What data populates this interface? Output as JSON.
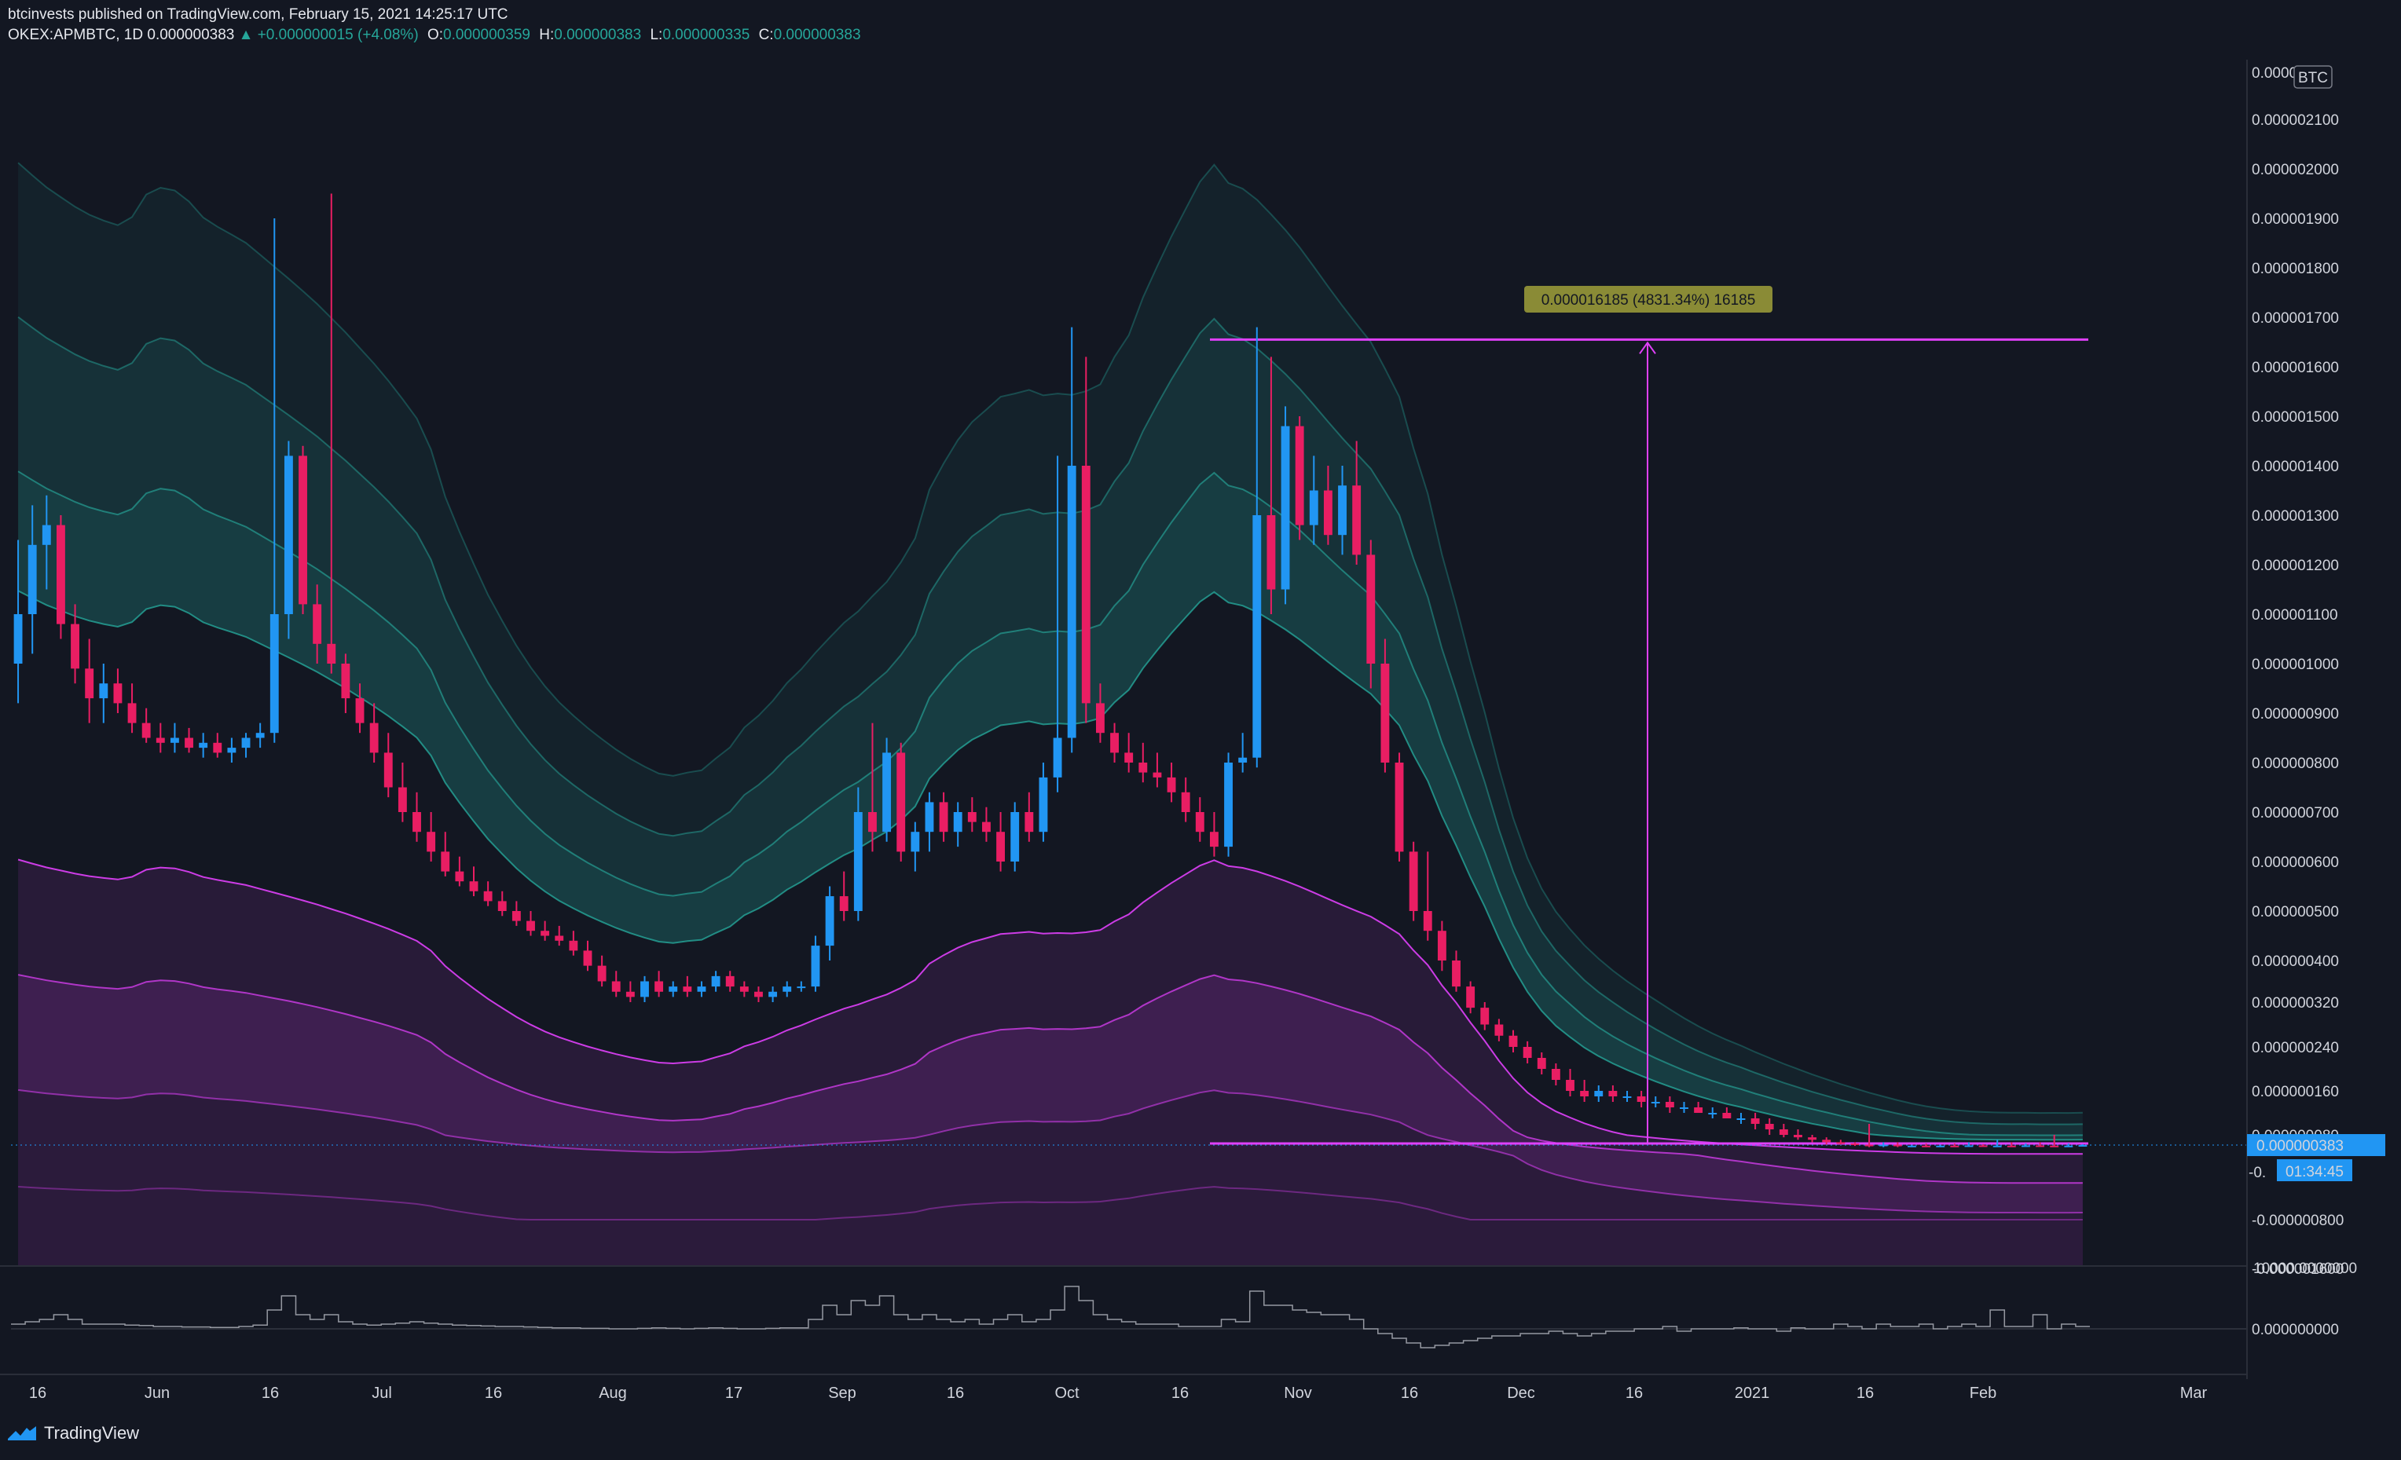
{
  "header": {
    "publisher_line": "btcinvests published on TradingView.com, February 15, 2021 14:25:17 UTC",
    "symbol": "OKEX:APMBTC, 1D",
    "last": "0.000000383",
    "change": "▲ +0.000000015 (+4.08%)",
    "o_label": "O:",
    "o_val": "0.000000359",
    "h_label": "H:",
    "h_val": "0.000000383",
    "l_label": "L:",
    "l_val": "0.000000335",
    "c_label": "C:",
    "c_val": "0.000000383"
  },
  "footer": {
    "brand": "TradingView"
  },
  "colors": {
    "background": "#131722",
    "up": "#2196f3",
    "down": "#e91e63",
    "teal_band": "#26a69a",
    "magenta_band": "#e040fb",
    "measure": "#e040fb",
    "last_price_bg": "#2196f3"
  },
  "chart_data": {
    "type": "candlestick",
    "currency_badge": "BTC",
    "price_scale_labels": [
      "0.000002100",
      "0.000002000",
      "0.000001900",
      "0.000001800",
      "0.000001700",
      "0.000001600",
      "0.000001500",
      "0.000001400",
      "0.000001300",
      "0.000001200",
      "0.000001100",
      "0.000001000",
      "0.000000900",
      "0.000000800",
      "0.000000700",
      "0.000000600",
      "0.000000500",
      "0.000000400",
      "0.000000320",
      "0.000000240",
      "0.000000160",
      "0.000000080",
      "-0.000000800"
    ],
    "price_scale_top_partial": "0.00000",
    "price_scale_bottom_partial": "-0.000001600",
    "last_price": "0.000000383",
    "countdown": "01:34:45",
    "last_price_neg_partial": "-0.",
    "volume_scale_labels": [
      "10000.0000000",
      "0.000000000"
    ],
    "x_labels": [
      "16",
      "Jun",
      "16",
      "Jul",
      "16",
      "Aug",
      "17",
      "Sep",
      "16",
      "Oct",
      "16",
      "Nov",
      "16",
      "Dec",
      "16",
      "2021",
      "16",
      "Feb",
      "Mar"
    ],
    "measure_label": "0.000016185 (4831.34%) 16185",
    "candles": [
      {
        "o": 1.0,
        "h": 1.25,
        "l": 0.92,
        "c": 1.1
      },
      {
        "o": 1.1,
        "h": 1.32,
        "l": 1.02,
        "c": 1.24
      },
      {
        "o": 1.24,
        "h": 1.34,
        "l": 1.15,
        "c": 1.28
      },
      {
        "o": 1.28,
        "h": 1.3,
        "l": 1.05,
        "c": 1.08
      },
      {
        "o": 1.08,
        "h": 1.12,
        "l": 0.96,
        "c": 0.99
      },
      {
        "o": 0.99,
        "h": 1.05,
        "l": 0.88,
        "c": 0.93
      },
      {
        "o": 0.93,
        "h": 1.0,
        "l": 0.88,
        "c": 0.96
      },
      {
        "o": 0.96,
        "h": 0.99,
        "l": 0.9,
        "c": 0.92
      },
      {
        "o": 0.92,
        "h": 0.96,
        "l": 0.86,
        "c": 0.88
      },
      {
        "o": 0.88,
        "h": 0.91,
        "l": 0.84,
        "c": 0.85
      },
      {
        "o": 0.85,
        "h": 0.88,
        "l": 0.82,
        "c": 0.84
      },
      {
        "o": 0.84,
        "h": 0.88,
        "l": 0.82,
        "c": 0.85
      },
      {
        "o": 0.85,
        "h": 0.87,
        "l": 0.82,
        "c": 0.83
      },
      {
        "o": 0.83,
        "h": 0.86,
        "l": 0.81,
        "c": 0.84
      },
      {
        "o": 0.84,
        "h": 0.86,
        "l": 0.81,
        "c": 0.82
      },
      {
        "o": 0.82,
        "h": 0.85,
        "l": 0.8,
        "c": 0.83
      },
      {
        "o": 0.83,
        "h": 0.86,
        "l": 0.81,
        "c": 0.85
      },
      {
        "o": 0.85,
        "h": 0.88,
        "l": 0.83,
        "c": 0.86
      },
      {
        "o": 0.86,
        "h": 1.9,
        "l": 0.84,
        "c": 1.1
      },
      {
        "o": 1.1,
        "h": 1.45,
        "l": 1.05,
        "c": 1.42
      },
      {
        "o": 1.42,
        "h": 1.44,
        "l": 1.1,
        "c": 1.12
      },
      {
        "o": 1.12,
        "h": 1.16,
        "l": 1.0,
        "c": 1.04
      },
      {
        "o": 1.04,
        "h": 1.95,
        "l": 0.98,
        "c": 1.0
      },
      {
        "o": 1.0,
        "h": 1.02,
        "l": 0.9,
        "c": 0.93
      },
      {
        "o": 0.93,
        "h": 0.96,
        "l": 0.86,
        "c": 0.88
      },
      {
        "o": 0.88,
        "h": 0.92,
        "l": 0.8,
        "c": 0.82
      },
      {
        "o": 0.82,
        "h": 0.86,
        "l": 0.73,
        "c": 0.75
      },
      {
        "o": 0.75,
        "h": 0.8,
        "l": 0.68,
        "c": 0.7
      },
      {
        "o": 0.7,
        "h": 0.74,
        "l": 0.64,
        "c": 0.66
      },
      {
        "o": 0.66,
        "h": 0.7,
        "l": 0.6,
        "c": 0.62
      },
      {
        "o": 0.62,
        "h": 0.66,
        "l": 0.57,
        "c": 0.58
      },
      {
        "o": 0.58,
        "h": 0.61,
        "l": 0.55,
        "c": 0.56
      },
      {
        "o": 0.56,
        "h": 0.59,
        "l": 0.53,
        "c": 0.54
      },
      {
        "o": 0.54,
        "h": 0.56,
        "l": 0.51,
        "c": 0.52
      },
      {
        "o": 0.52,
        "h": 0.54,
        "l": 0.49,
        "c": 0.5
      },
      {
        "o": 0.5,
        "h": 0.52,
        "l": 0.47,
        "c": 0.48
      },
      {
        "o": 0.48,
        "h": 0.5,
        "l": 0.45,
        "c": 0.46
      },
      {
        "o": 0.46,
        "h": 0.48,
        "l": 0.44,
        "c": 0.45
      },
      {
        "o": 0.45,
        "h": 0.47,
        "l": 0.43,
        "c": 0.44
      },
      {
        "o": 0.44,
        "h": 0.46,
        "l": 0.41,
        "c": 0.42
      },
      {
        "o": 0.42,
        "h": 0.44,
        "l": 0.38,
        "c": 0.39
      },
      {
        "o": 0.39,
        "h": 0.41,
        "l": 0.35,
        "c": 0.36
      },
      {
        "o": 0.36,
        "h": 0.38,
        "l": 0.33,
        "c": 0.34
      },
      {
        "o": 0.34,
        "h": 0.36,
        "l": 0.32,
        "c": 0.33
      },
      {
        "o": 0.33,
        "h": 0.37,
        "l": 0.32,
        "c": 0.36
      },
      {
        "o": 0.36,
        "h": 0.38,
        "l": 0.33,
        "c": 0.34
      },
      {
        "o": 0.34,
        "h": 0.36,
        "l": 0.33,
        "c": 0.35
      },
      {
        "o": 0.35,
        "h": 0.37,
        "l": 0.33,
        "c": 0.34
      },
      {
        "o": 0.34,
        "h": 0.36,
        "l": 0.33,
        "c": 0.35
      },
      {
        "o": 0.35,
        "h": 0.38,
        "l": 0.34,
        "c": 0.37
      },
      {
        "o": 0.37,
        "h": 0.38,
        "l": 0.34,
        "c": 0.35
      },
      {
        "o": 0.35,
        "h": 0.36,
        "l": 0.33,
        "c": 0.34
      },
      {
        "o": 0.34,
        "h": 0.35,
        "l": 0.32,
        "c": 0.33
      },
      {
        "o": 0.33,
        "h": 0.35,
        "l": 0.32,
        "c": 0.34
      },
      {
        "o": 0.34,
        "h": 0.36,
        "l": 0.33,
        "c": 0.35
      },
      {
        "o": 0.35,
        "h": 0.36,
        "l": 0.34,
        "c": 0.35
      },
      {
        "o": 0.35,
        "h": 0.45,
        "l": 0.34,
        "c": 0.43
      },
      {
        "o": 0.43,
        "h": 0.55,
        "l": 0.4,
        "c": 0.53
      },
      {
        "o": 0.53,
        "h": 0.58,
        "l": 0.48,
        "c": 0.5
      },
      {
        "o": 0.5,
        "h": 0.75,
        "l": 0.48,
        "c": 0.7
      },
      {
        "o": 0.7,
        "h": 0.88,
        "l": 0.62,
        "c": 0.66
      },
      {
        "o": 0.66,
        "h": 0.85,
        "l": 0.64,
        "c": 0.82
      },
      {
        "o": 0.82,
        "h": 0.84,
        "l": 0.6,
        "c": 0.62
      },
      {
        "o": 0.62,
        "h": 0.68,
        "l": 0.58,
        "c": 0.66
      },
      {
        "o": 0.66,
        "h": 0.74,
        "l": 0.62,
        "c": 0.72
      },
      {
        "o": 0.72,
        "h": 0.74,
        "l": 0.64,
        "c": 0.66
      },
      {
        "o": 0.66,
        "h": 0.72,
        "l": 0.63,
        "c": 0.7
      },
      {
        "o": 0.7,
        "h": 0.73,
        "l": 0.66,
        "c": 0.68
      },
      {
        "o": 0.68,
        "h": 0.71,
        "l": 0.64,
        "c": 0.66
      },
      {
        "o": 0.66,
        "h": 0.7,
        "l": 0.58,
        "c": 0.6
      },
      {
        "o": 0.6,
        "h": 0.72,
        "l": 0.58,
        "c": 0.7
      },
      {
        "o": 0.7,
        "h": 0.74,
        "l": 0.64,
        "c": 0.66
      },
      {
        "o": 0.66,
        "h": 0.8,
        "l": 0.64,
        "c": 0.77
      },
      {
        "o": 0.77,
        "h": 1.42,
        "l": 0.74,
        "c": 0.85
      },
      {
        "o": 0.85,
        "h": 1.68,
        "l": 0.82,
        "c": 1.4
      },
      {
        "o": 1.4,
        "h": 1.62,
        "l": 0.88,
        "c": 0.92
      },
      {
        "o": 0.92,
        "h": 0.96,
        "l": 0.84,
        "c": 0.86
      },
      {
        "o": 0.86,
        "h": 0.88,
        "l": 0.8,
        "c": 0.82
      },
      {
        "o": 0.82,
        "h": 0.86,
        "l": 0.78,
        "c": 0.8
      },
      {
        "o": 0.8,
        "h": 0.84,
        "l": 0.76,
        "c": 0.78
      },
      {
        "o": 0.78,
        "h": 0.82,
        "l": 0.75,
        "c": 0.77
      },
      {
        "o": 0.77,
        "h": 0.8,
        "l": 0.72,
        "c": 0.74
      },
      {
        "o": 0.74,
        "h": 0.77,
        "l": 0.68,
        "c": 0.7
      },
      {
        "o": 0.7,
        "h": 0.73,
        "l": 0.64,
        "c": 0.66
      },
      {
        "o": 0.66,
        "h": 0.7,
        "l": 0.61,
        "c": 0.63
      },
      {
        "o": 0.63,
        "h": 0.82,
        "l": 0.61,
        "c": 0.8
      },
      {
        "o": 0.8,
        "h": 0.86,
        "l": 0.78,
        "c": 0.81
      },
      {
        "o": 0.81,
        "h": 1.68,
        "l": 0.79,
        "c": 1.3
      },
      {
        "o": 1.3,
        "h": 1.62,
        "l": 1.1,
        "c": 1.15
      },
      {
        "o": 1.15,
        "h": 1.52,
        "l": 1.12,
        "c": 1.48
      },
      {
        "o": 1.48,
        "h": 1.5,
        "l": 1.25,
        "c": 1.28
      },
      {
        "o": 1.28,
        "h": 1.42,
        "l": 1.24,
        "c": 1.35
      },
      {
        "o": 1.35,
        "h": 1.4,
        "l": 1.24,
        "c": 1.26
      },
      {
        "o": 1.26,
        "h": 1.4,
        "l": 1.22,
        "c": 1.36
      },
      {
        "o": 1.36,
        "h": 1.45,
        "l": 1.2,
        "c": 1.22
      },
      {
        "o": 1.22,
        "h": 1.25,
        "l": 0.95,
        "c": 1.0
      },
      {
        "o": 1.0,
        "h": 1.05,
        "l": 0.78,
        "c": 0.8
      },
      {
        "o": 0.8,
        "h": 0.82,
        "l": 0.6,
        "c": 0.62
      },
      {
        "o": 0.62,
        "h": 0.64,
        "l": 0.48,
        "c": 0.5
      },
      {
        "o": 0.5,
        "h": 0.62,
        "l": 0.44,
        "c": 0.46
      },
      {
        "o": 0.46,
        "h": 0.48,
        "l": 0.38,
        "c": 0.4
      },
      {
        "o": 0.4,
        "h": 0.42,
        "l": 0.34,
        "c": 0.35
      },
      {
        "o": 0.35,
        "h": 0.36,
        "l": 0.3,
        "c": 0.31
      },
      {
        "o": 0.31,
        "h": 0.32,
        "l": 0.27,
        "c": 0.28
      },
      {
        "o": 0.28,
        "h": 0.29,
        "l": 0.25,
        "c": 0.26
      },
      {
        "o": 0.26,
        "h": 0.27,
        "l": 0.23,
        "c": 0.24
      },
      {
        "o": 0.24,
        "h": 0.25,
        "l": 0.21,
        "c": 0.22
      },
      {
        "o": 0.22,
        "h": 0.23,
        "l": 0.19,
        "c": 0.2
      },
      {
        "o": 0.2,
        "h": 0.21,
        "l": 0.17,
        "c": 0.18
      },
      {
        "o": 0.18,
        "h": 0.2,
        "l": 0.15,
        "c": 0.16
      },
      {
        "o": 0.16,
        "h": 0.18,
        "l": 0.14,
        "c": 0.15
      },
      {
        "o": 0.15,
        "h": 0.17,
        "l": 0.14,
        "c": 0.16
      },
      {
        "o": 0.16,
        "h": 0.17,
        "l": 0.14,
        "c": 0.15
      },
      {
        "o": 0.15,
        "h": 0.16,
        "l": 0.14,
        "c": 0.15
      },
      {
        "o": 0.15,
        "h": 0.16,
        "l": 0.13,
        "c": 0.14
      },
      {
        "o": 0.14,
        "h": 0.15,
        "l": 0.13,
        "c": 0.14
      },
      {
        "o": 0.14,
        "h": 0.15,
        "l": 0.12,
        "c": 0.13
      },
      {
        "o": 0.13,
        "h": 0.14,
        "l": 0.12,
        "c": 0.13
      },
      {
        "o": 0.13,
        "h": 0.14,
        "l": 0.12,
        "c": 0.12
      },
      {
        "o": 0.12,
        "h": 0.13,
        "l": 0.11,
        "c": 0.12
      },
      {
        "o": 0.12,
        "h": 0.13,
        "l": 0.11,
        "c": 0.11
      },
      {
        "o": 0.11,
        "h": 0.12,
        "l": 0.1,
        "c": 0.11
      },
      {
        "o": 0.11,
        "h": 0.12,
        "l": 0.09,
        "c": 0.1
      },
      {
        "o": 0.1,
        "h": 0.11,
        "l": 0.08,
        "c": 0.09
      },
      {
        "o": 0.09,
        "h": 0.1,
        "l": 0.07,
        "c": 0.08
      },
      {
        "o": 0.08,
        "h": 0.09,
        "l": 0.06,
        "c": 0.07
      },
      {
        "o": 0.07,
        "h": 0.08,
        "l": 0.05,
        "c": 0.06
      },
      {
        "o": 0.06,
        "h": 0.07,
        "l": 0.04,
        "c": 0.05
      },
      {
        "o": 0.05,
        "h": 0.06,
        "l": 0.04,
        "c": 0.045
      },
      {
        "o": 0.045,
        "h": 0.05,
        "l": 0.035,
        "c": 0.04
      },
      {
        "o": 0.04,
        "h": 0.1,
        "l": 0.03,
        "c": 0.035
      },
      {
        "o": 0.035,
        "h": 0.05,
        "l": 0.03,
        "c": 0.04
      },
      {
        "o": 0.04,
        "h": 0.05,
        "l": 0.03,
        "c": 0.035
      },
      {
        "o": 0.035,
        "h": 0.04,
        "l": 0.03,
        "c": 0.036
      },
      {
        "o": 0.036,
        "h": 0.045,
        "l": 0.03,
        "c": 0.034
      },
      {
        "o": 0.034,
        "h": 0.04,
        "l": 0.03,
        "c": 0.036
      },
      {
        "o": 0.036,
        "h": 0.045,
        "l": 0.033,
        "c": 0.035
      },
      {
        "o": 0.035,
        "h": 0.05,
        "l": 0.033,
        "c": 0.037
      },
      {
        "o": 0.037,
        "h": 0.042,
        "l": 0.033,
        "c": 0.035
      },
      {
        "o": 0.035,
        "h": 0.06,
        "l": 0.033,
        "c": 0.036
      },
      {
        "o": 0.036,
        "h": 0.05,
        "l": 0.033,
        "c": 0.035
      },
      {
        "o": 0.035,
        "h": 0.045,
        "l": 0.033,
        "c": 0.037
      },
      {
        "o": 0.037,
        "h": 0.05,
        "l": 0.034,
        "c": 0.036
      },
      {
        "o": 0.036,
        "h": 0.08,
        "l": 0.034,
        "c": 0.035
      },
      {
        "o": 0.035,
        "h": 0.045,
        "l": 0.034,
        "c": 0.036
      },
      {
        "o": 0.036,
        "h": 0.042,
        "l": 0.0335,
        "c": 0.0383
      }
    ],
    "volume": [
      0.1,
      0.15,
      0.2,
      0.3,
      0.2,
      0.1,
      0.1,
      0.1,
      0.08,
      0.07,
      0.05,
      0.05,
      0.04,
      0.04,
      0.03,
      0.03,
      0.05,
      0.08,
      0.4,
      0.7,
      0.3,
      0.2,
      0.3,
      0.15,
      0.1,
      0.08,
      0.1,
      0.12,
      0.15,
      0.12,
      0.1,
      0.08,
      0.07,
      0.06,
      0.05,
      0.05,
      0.04,
      0.03,
      0.02,
      0.02,
      0.01,
      0.01,
      0.0,
      0.0,
      0.01,
      0.02,
      0.01,
      0.0,
      0.01,
      0.02,
      0.01,
      0.0,
      0.0,
      0.01,
      0.02,
      0.02,
      0.2,
      0.5,
      0.3,
      0.6,
      0.5,
      0.7,
      0.3,
      0.2,
      0.3,
      0.2,
      0.15,
      0.2,
      0.1,
      0.2,
      0.3,
      0.15,
      0.2,
      0.4,
      0.9,
      0.6,
      0.3,
      0.2,
      0.15,
      0.1,
      0.1,
      0.1,
      0.05,
      0.05,
      0.05,
      0.2,
      0.15,
      0.8,
      0.5,
      0.5,
      0.4,
      0.35,
      0.3,
      0.3,
      0.2,
      0.0,
      -0.1,
      -0.2,
      -0.3,
      -0.4,
      -0.35,
      -0.3,
      -0.25,
      -0.2,
      -0.15,
      -0.15,
      -0.1,
      -0.1,
      -0.05,
      -0.1,
      -0.15,
      -0.1,
      -0.05,
      -0.05,
      0.0,
      0.0,
      0.05,
      -0.05,
      0.0,
      0.0,
      0.0,
      0.02,
      0.0,
      0.0,
      -0.05,
      0.02,
      0.0,
      0.0,
      0.1,
      0.05,
      0.0,
      0.1,
      0.05,
      0.05,
      0.1,
      0.0,
      0.05,
      0.1,
      0.05,
      0.4,
      0.05,
      0.05,
      0.3,
      0.0,
      0.1,
      0.05
    ]
  }
}
